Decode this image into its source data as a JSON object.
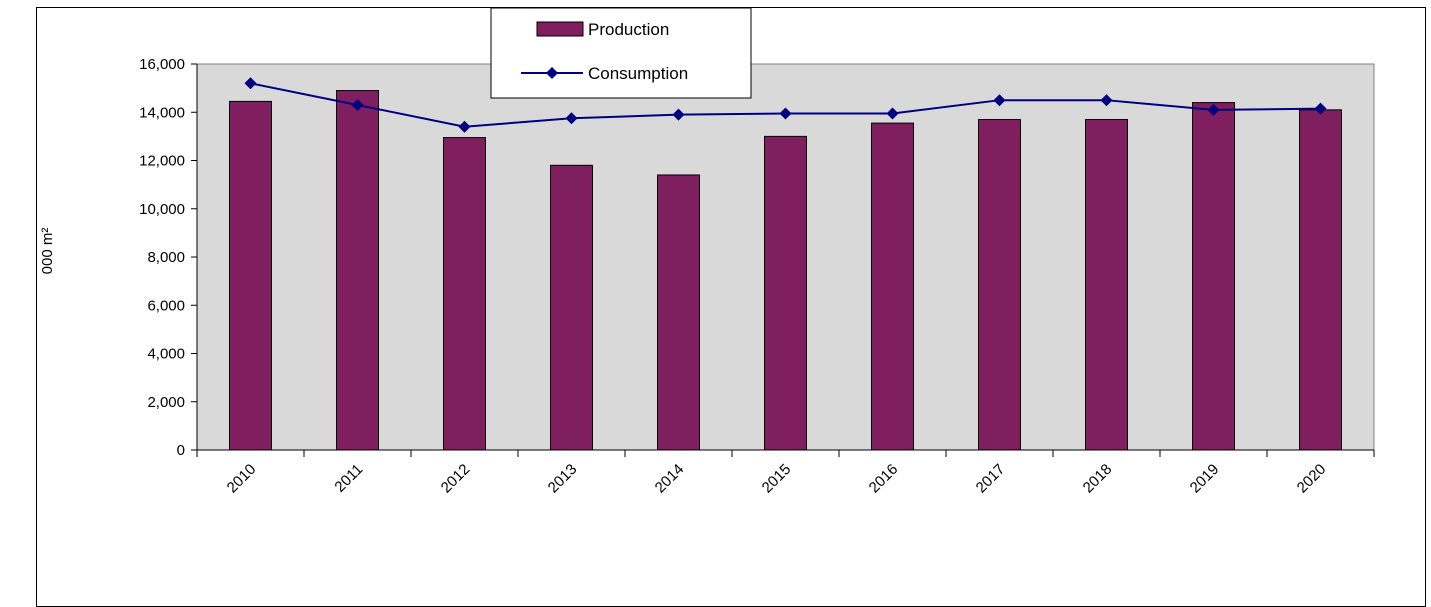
{
  "chart_data": {
    "type": "bar",
    "title": "",
    "xlabel": "",
    "ylabel": "000 m²",
    "categories": [
      "2010",
      "2011",
      "2012",
      "2013",
      "2014",
      "2015",
      "2016",
      "2017",
      "2018",
      "2019",
      "2020"
    ],
    "series": [
      {
        "name": "Production",
        "type": "bar",
        "values": [
          14450,
          14900,
          12950,
          11800,
          11400,
          13000,
          13550,
          13700,
          13700,
          14400,
          14100
        ]
      },
      {
        "name": "Consumption",
        "type": "line",
        "values": [
          15200,
          14300,
          13400,
          13750,
          13900,
          13950,
          13950,
          14500,
          14500,
          14100,
          14150
        ]
      }
    ],
    "yticks": [
      "0",
      "2,000",
      "4,000",
      "6,000",
      "8,000",
      "10,000",
      "12,000",
      "14,000",
      "16,000"
    ],
    "ylim": [
      0,
      16000
    ],
    "grid": false,
    "legend": "top-center",
    "colors": {
      "Production": "#7f1f5f",
      "Consumption": "#000080",
      "plot_bg": "#d9d9d9"
    }
  }
}
